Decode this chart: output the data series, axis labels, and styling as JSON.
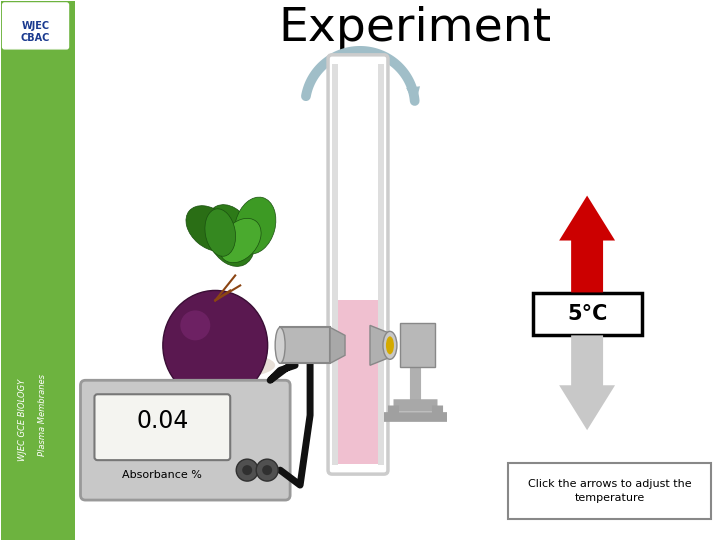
{
  "title": "Experiment",
  "title_fontsize": 34,
  "sidebar_color": "#6db33f",
  "bg_color": "#ffffff",
  "side_text1": "WJEC GCE BIOLOGY",
  "side_text2": "Plasma Membranes",
  "temp_label": "5°C",
  "absorbance_value": "0.04",
  "absorbance_label": "Absorbance %",
  "click_text": "Click the arrows to adjust the\ntemperature",
  "tube_liquid_color": "#f0c0d0",
  "red_arrow_color": "#cc0000",
  "gray_arrow_color": "#c8c8c8",
  "circular_arrow_color": "#a0bec8",
  "device_color": "#c8c8c8",
  "holder_color": "#b0b0b0",
  "lamp_color": "#d4aa00",
  "leaf_colors": [
    "#3a8c1e",
    "#4aa428",
    "#2e7a18",
    "#55b830",
    "#3a8c1e"
  ],
  "beet_color": "#5a1850",
  "beet_edge": "#3a0e35"
}
